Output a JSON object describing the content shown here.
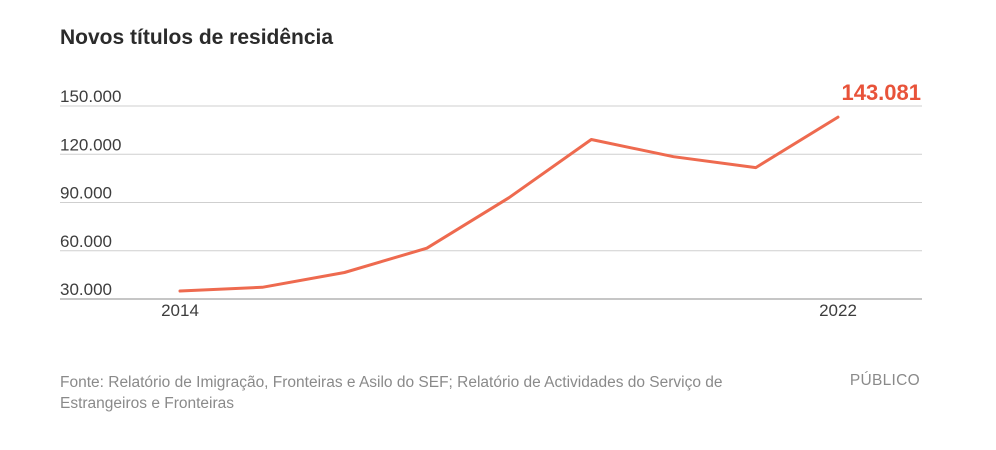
{
  "title": "Novos títulos de residência",
  "chart_data": {
    "type": "line",
    "title": "Novos títulos de residência",
    "x": [
      2014,
      2015,
      2016,
      2017,
      2018,
      2019,
      2020,
      2021,
      2022
    ],
    "x_tick_labels": [
      "2014",
      "2022"
    ],
    "series": [
      {
        "values": [
          35000,
          37300,
          46500,
          61600,
          93000,
          129200,
          118500,
          111700,
          143081
        ],
        "color": "#ee6a4f"
      }
    ],
    "y_ticks": [
      30000,
      60000,
      90000,
      120000,
      150000
    ],
    "y_tick_labels": [
      "30.000",
      "60.000",
      "90.000",
      "120.000",
      "150.000"
    ],
    "ylim": [
      30000,
      150000
    ],
    "grid": true,
    "highlight_label": "143.081",
    "highlight_color": "#e8533a"
  },
  "footer": {
    "source": "Fonte: Relatório de Imigração, Fronteiras e Asilo do SEF; Relatório de Actividades do Serviço de Estrangeiros e Fronteiras",
    "brand": "PÚBLICO"
  }
}
